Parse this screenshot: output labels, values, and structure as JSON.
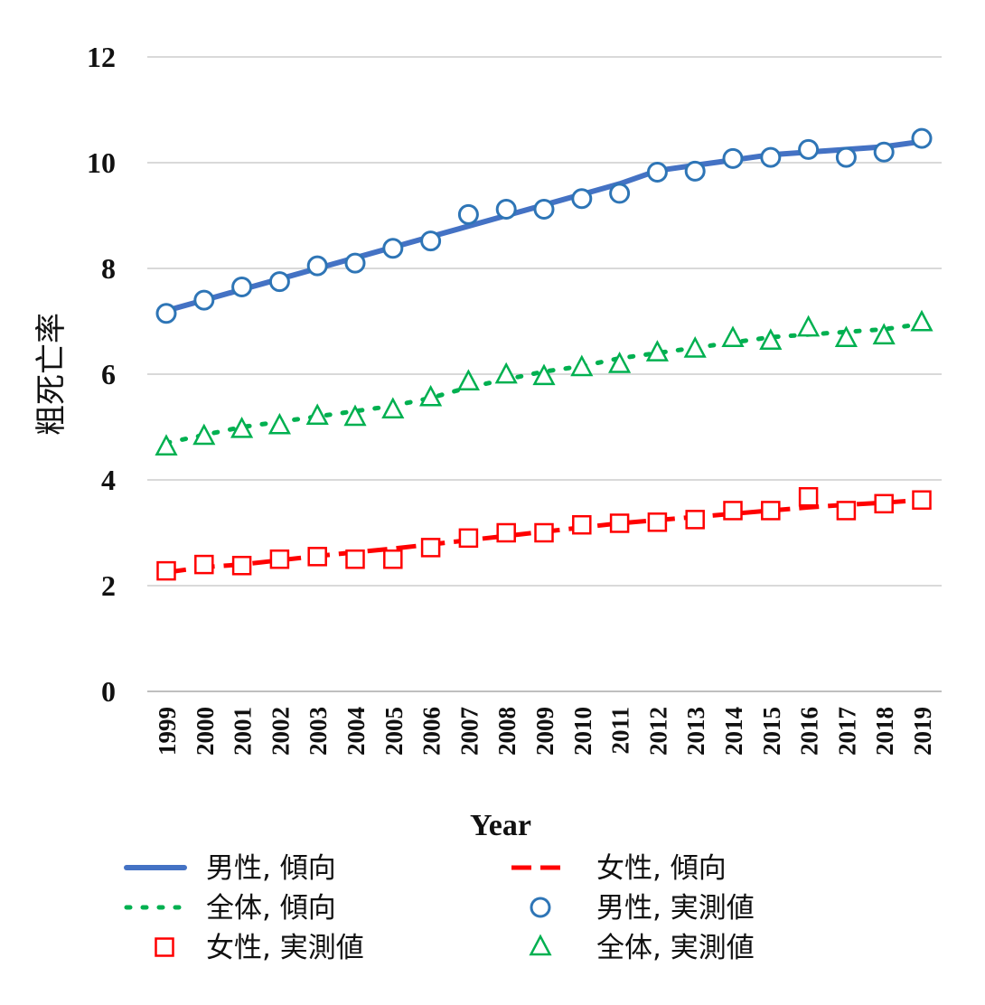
{
  "chart_data": {
    "type": "line",
    "xlabel": "Year",
    "ylabel": "粗死亡率",
    "ylim": [
      0,
      12
    ],
    "yticks": [
      "0",
      "2",
      "4",
      "6",
      "8",
      "10",
      "12"
    ],
    "grid": true,
    "legend_position": "bottom",
    "x": [
      "1999",
      "2000",
      "2001",
      "2002",
      "2003",
      "2004",
      "2005",
      "2006",
      "2007",
      "2008",
      "2009",
      "2010",
      "2011",
      "2012",
      "2013",
      "2014",
      "2015",
      "2016",
      "2017",
      "2018",
      "2019"
    ],
    "series": [
      {
        "name": "男性, 傾向",
        "kind": "trend",
        "style": "solid",
        "color": "#4472C4",
        "values": [
          7.2,
          7.4,
          7.6,
          7.8,
          8.0,
          8.2,
          8.4,
          8.6,
          8.8,
          9.0,
          9.2,
          9.4,
          9.6,
          9.85,
          9.95,
          10.05,
          10.15,
          10.2,
          10.25,
          10.3,
          10.4
        ]
      },
      {
        "name": "女性, 傾向",
        "kind": "trend",
        "style": "dashed",
        "color": "#FF0000",
        "values": [
          2.25,
          2.35,
          2.4,
          2.48,
          2.56,
          2.63,
          2.7,
          2.78,
          2.86,
          2.94,
          3.02,
          3.1,
          3.18,
          3.24,
          3.3,
          3.36,
          3.42,
          3.48,
          3.53,
          3.57,
          3.62
        ]
      },
      {
        "name": "全体, 傾向",
        "kind": "trend",
        "style": "dotted",
        "color": "#00B050",
        "values": [
          4.7,
          4.85,
          5.0,
          5.1,
          5.2,
          5.3,
          5.4,
          5.55,
          5.75,
          5.9,
          6.05,
          6.15,
          6.3,
          6.4,
          6.5,
          6.6,
          6.7,
          6.75,
          6.8,
          6.85,
          6.95
        ]
      },
      {
        "name": "男性, 実測値",
        "kind": "marker",
        "marker": "circle",
        "color": "#2E75B6",
        "values": [
          7.15,
          7.4,
          7.65,
          7.75,
          8.05,
          8.1,
          8.38,
          8.52,
          9.02,
          9.12,
          9.12,
          9.32,
          9.42,
          9.82,
          9.84,
          10.08,
          10.1,
          10.25,
          10.1,
          10.2,
          10.46
        ]
      },
      {
        "name": "女性, 実測値",
        "kind": "marker",
        "marker": "square",
        "color": "#FF0000",
        "values": [
          2.28,
          2.4,
          2.38,
          2.5,
          2.55,
          2.5,
          2.5,
          2.72,
          2.9,
          3.0,
          3.0,
          3.15,
          3.18,
          3.2,
          3.25,
          3.42,
          3.42,
          3.68,
          3.42,
          3.55,
          3.62
        ]
      },
      {
        "name": "全体, 実測値",
        "kind": "marker",
        "marker": "triangle",
        "color": "#00B050",
        "values": [
          4.62,
          4.82,
          4.95,
          5.02,
          5.2,
          5.18,
          5.32,
          5.55,
          5.85,
          5.98,
          5.95,
          6.12,
          6.18,
          6.4,
          6.47,
          6.67,
          6.62,
          6.87,
          6.67,
          6.72,
          6.97
        ]
      }
    ]
  }
}
